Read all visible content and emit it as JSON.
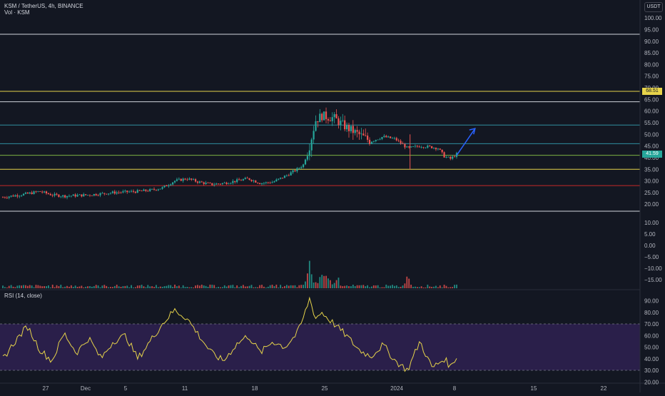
{
  "header": {
    "title": "KSM / TetherUS, 4h, BINANCE",
    "volume_label": "Vol · KSM",
    "rsi_label": "RSI (14, close)",
    "currency": "USDT"
  },
  "colors": {
    "background": "#131722",
    "up": "#26a69a",
    "down": "#ef5350",
    "yellow_line": "#e6d34a",
    "green_line": "#7cb342",
    "teal_line": "#2f8fa0",
    "red_line": "#c62828",
    "white_line": "#d1d4dc",
    "rsi_line": "#e6d34a",
    "rsi_band": "#2a1f4a",
    "arrow": "#2962ff"
  },
  "price_tags": [
    {
      "label": "68.51",
      "bg": "#e6d34a",
      "fg": "#131722",
      "value": 68.5
    },
    {
      "label": "41.59",
      "bg": "#26a69a",
      "fg": "#ffffff",
      "value": 41.6
    }
  ],
  "chart_data": [
    {
      "type": "candlestick",
      "title": "KSM / TetherUS, 4h, BINANCE",
      "x_tick_labels": [
        "27",
        "Dec",
        "5",
        "11",
        "18",
        "25",
        "2024",
        "8",
        "15",
        "22"
      ],
      "y_ticks": [
        20,
        25,
        30,
        35,
        40,
        45,
        50,
        55,
        60,
        65,
        70,
        75,
        80,
        85,
        90,
        95,
        100
      ],
      "ylim": [
        15,
        105
      ],
      "horizontal_lines": [
        {
          "value": 93,
          "color": "white"
        },
        {
          "value": 68.5,
          "color": "yellow"
        },
        {
          "value": 64,
          "color": "white"
        },
        {
          "value": 54,
          "color": "teal"
        },
        {
          "value": 46,
          "color": "teal"
        },
        {
          "value": 41,
          "color": "green"
        },
        {
          "value": 35,
          "color": "yellow"
        },
        {
          "value": 28,
          "color": "red"
        },
        {
          "value": 17,
          "color": "white"
        }
      ],
      "arrow": {
        "from": [
          37,
          41
        ],
        "to": [
          38.5,
          52.5
        ]
      },
      "close_anchors": [
        [
          0,
          23
        ],
        [
          2,
          24.5
        ],
        [
          3,
          25.5
        ],
        [
          4,
          24
        ],
        [
          5,
          23.5
        ],
        [
          7,
          24
        ],
        [
          9,
          25
        ],
        [
          11,
          25.5
        ],
        [
          12,
          26
        ],
        [
          13,
          27
        ],
        [
          14,
          30
        ],
        [
          15,
          31
        ],
        [
          16,
          29.5
        ],
        [
          17,
          28.5
        ],
        [
          18,
          29
        ],
        [
          19,
          30
        ],
        [
          20,
          31
        ],
        [
          21,
          29
        ],
        [
          22,
          29.5
        ],
        [
          23,
          32
        ],
        [
          24,
          35
        ],
        [
          24.5,
          37
        ],
        [
          25,
          45
        ],
        [
          25.5,
          56
        ],
        [
          26,
          58
        ],
        [
          27,
          57
        ],
        [
          28,
          53
        ],
        [
          29,
          50
        ],
        [
          30,
          47
        ],
        [
          31,
          49
        ],
        [
          32,
          48
        ],
        [
          33,
          44
        ],
        [
          34,
          45
        ],
        [
          35,
          44.5
        ],
        [
          35.5,
          44
        ],
        [
          36,
          40.5
        ],
        [
          36.5,
          39.5
        ],
        [
          37,
          41.5
        ]
      ]
    },
    {
      "type": "bar",
      "title": "Vol · KSM",
      "y_ticks": [
        -15,
        -10,
        -5,
        0,
        5,
        10
      ],
      "ylim": [
        -20,
        13
      ],
      "spikes": [
        [
          25,
          12
        ],
        [
          25.1,
          7
        ],
        [
          26,
          6
        ],
        [
          26.4,
          3
        ],
        [
          27,
          2
        ],
        [
          33,
          5
        ]
      ]
    },
    {
      "type": "line",
      "title": "RSI (14, close)",
      "y_ticks": [
        20,
        30,
        40,
        50,
        60,
        70,
        80,
        90
      ],
      "ylim": [
        17,
        97
      ],
      "band": [
        30,
        70
      ],
      "anchors": [
        [
          0,
          40
        ],
        [
          1,
          55
        ],
        [
          2,
          68
        ],
        [
          3,
          48
        ],
        [
          4,
          38
        ],
        [
          5,
          62
        ],
        [
          6,
          45
        ],
        [
          7,
          58
        ],
        [
          8,
          40
        ],
        [
          9,
          55
        ],
        [
          10,
          60
        ],
        [
          11,
          40
        ],
        [
          12,
          55
        ],
        [
          13,
          70
        ],
        [
          14,
          82
        ],
        [
          15,
          75
        ],
        [
          16,
          60
        ],
        [
          17,
          45
        ],
        [
          18,
          38
        ],
        [
          19,
          52
        ],
        [
          20,
          60
        ],
        [
          21,
          45
        ],
        [
          22,
          55
        ],
        [
          23,
          50
        ],
        [
          24,
          62
        ],
        [
          24.5,
          75
        ],
        [
          25,
          92
        ],
        [
          25.5,
          75
        ],
        [
          26,
          80
        ],
        [
          27,
          70
        ],
        [
          28,
          60
        ],
        [
          29,
          48
        ],
        [
          30,
          42
        ],
        [
          31,
          52
        ],
        [
          32,
          38
        ],
        [
          33,
          30
        ],
        [
          34,
          55
        ],
        [
          35,
          32
        ],
        [
          36,
          40
        ],
        [
          36.5,
          33
        ],
        [
          37,
          42
        ]
      ]
    }
  ]
}
